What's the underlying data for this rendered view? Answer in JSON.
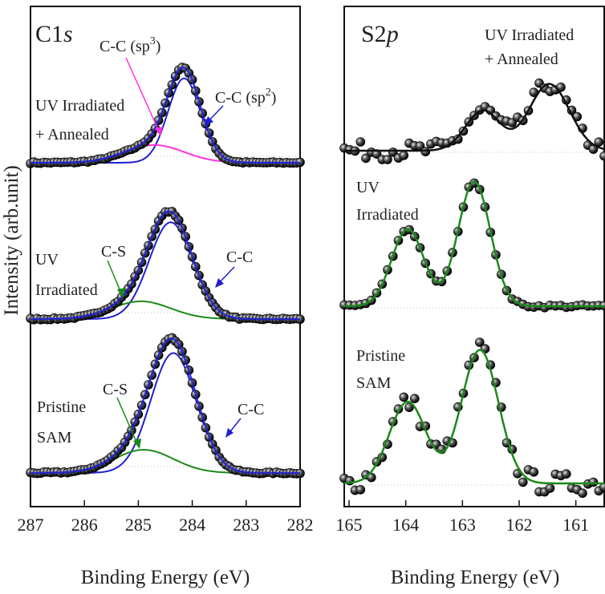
{
  "figure": {
    "ylabel": "Intensity (arb.unit)"
  },
  "chart_data": [
    {
      "type": "scatter",
      "panel": "C1s",
      "title": "C1",
      "title_italic": "s",
      "xlabel": "Binding Energy (eV)",
      "ylabel": "Intensity (arb.unit)",
      "xlim": [
        287,
        282
      ],
      "xticks": [
        "287",
        "286",
        "285",
        "284",
        "283",
        "282"
      ],
      "series": [
        {
          "name": "UV Irradiated + Annealed",
          "label_lines": [
            "UV Irradiated",
            "+ Annealed"
          ],
          "offset": 2.0,
          "components": [
            {
              "name": "C-C (sp2)",
              "label": "C-C (sp",
              "sup": "2",
              "label_end": ")",
              "center": 284.15,
              "height": 0.62,
              "sigma": 0.3,
              "color": "#1f1fd0"
            },
            {
              "name": "C-C (sp3)",
              "label": "C-C (sp",
              "sup": "3",
              "label_end": ")",
              "center": 284.7,
              "height": 0.13,
              "sigma": 0.55,
              "color": "#ff33dd"
            }
          ],
          "envelope_color": "#1f1fd0"
        },
        {
          "name": "UV Irradiated",
          "label_lines": [
            "UV",
            "Irradiated"
          ],
          "offset": 1.0,
          "components": [
            {
              "name": "C-C",
              "label": "C-C",
              "center": 284.4,
              "height": 0.71,
              "sigma": 0.4,
              "color": "#1f1fd0"
            },
            {
              "name": "C-S",
              "label": "C-S",
              "center": 284.95,
              "height": 0.13,
              "sigma": 0.55,
              "color": "#1a8a1a"
            }
          ],
          "envelope_color": "#1f1fd0"
        },
        {
          "name": "Pristine SAM",
          "label_lines": [
            "Pristine",
            "SAM"
          ],
          "offset": 0.0,
          "components": [
            {
              "name": "C-C",
              "label": "C-C",
              "center": 284.35,
              "height": 0.88,
              "sigma": 0.42,
              "color": "#1f1fd0"
            },
            {
              "name": "C-S",
              "label": "C-S",
              "center": 284.9,
              "height": 0.17,
              "sigma": 0.55,
              "color": "#1a8a1a"
            }
          ],
          "envelope_color": "#1f1fd0"
        }
      ]
    },
    {
      "type": "scatter",
      "panel": "S2p",
      "title": "S2",
      "title_italic": "p",
      "xlabel": "Binding Energy (eV)",
      "xlim": [
        165,
        160.5
      ],
      "xticks": [
        "165",
        "164",
        "163",
        "162",
        "161"
      ],
      "series": [
        {
          "name": "UV Irradiated + Annealed",
          "label_lines": [
            "UV Irradiated",
            "+ Annealed"
          ],
          "offset": 2.0,
          "peaks": [
            {
              "center": 162.6,
              "height": 0.27,
              "sigma": 0.3
            },
            {
              "center": 161.45,
              "height": 0.45,
              "sigma": 0.35
            }
          ],
          "fit_color": "#111111",
          "noise": 0.06
        },
        {
          "name": "UV Irradiated",
          "label_lines": [
            "UV",
            "Irradiated"
          ],
          "offset": 1.0,
          "peaks": [
            {
              "center": 163.9,
              "height": 0.52,
              "sigma": 0.28
            },
            {
              "center": 162.75,
              "height": 0.84,
              "sigma": 0.28
            }
          ],
          "fit_color": "#1a8a1a",
          "noise": 0.01
        },
        {
          "name": "Pristine SAM",
          "label_lines": [
            "Pristine",
            "SAM"
          ],
          "offset": 0.0,
          "peaks": [
            {
              "center": 163.9,
              "height": 0.55,
              "sigma": 0.32
            },
            {
              "center": 162.65,
              "height": 0.9,
              "sigma": 0.32
            }
          ],
          "fit_color": "#1a8a1a",
          "noise": 0.07
        }
      ]
    }
  ]
}
